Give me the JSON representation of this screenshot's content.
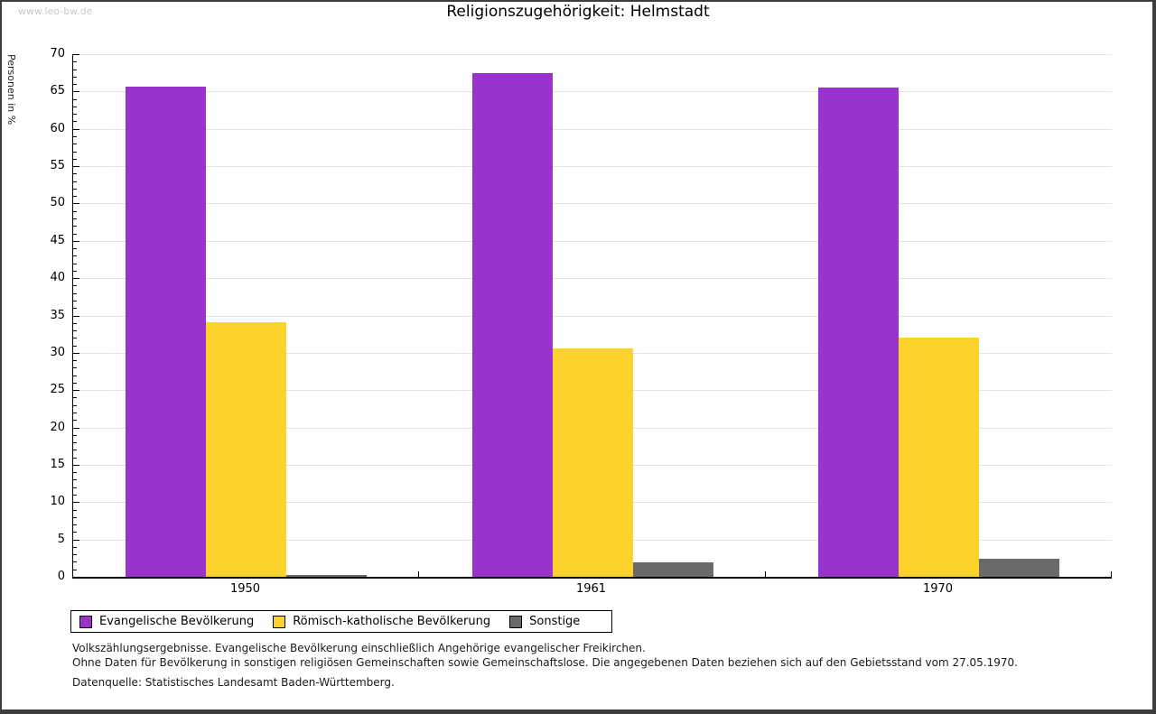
{
  "page": {
    "watermark": "www.leo-bw.de",
    "title": "Religionszugehörigkeit: Helmstadt"
  },
  "chart_data": {
    "type": "bar",
    "title": "Religionszugehörigkeit: Helmstadt",
    "ylabel": "Personen in %",
    "xlabel": "",
    "ylim": [
      0,
      70
    ],
    "ytick_step": 5,
    "yminor_step": 1,
    "grid": true,
    "legend_position": "bottom-left",
    "categories": [
      "1950",
      "1961",
      "1970"
    ],
    "series": [
      {
        "name": "Evangelische Bevölkerung",
        "color": "#9933cc",
        "values": [
          65.6,
          67.5,
          65.5
        ]
      },
      {
        "name": "Römisch-katholische Bevölkerung",
        "color": "#fdd32b",
        "values": [
          34.1,
          30.6,
          32.0
        ]
      },
      {
        "name": "Sonstige",
        "color": "#6a6a6a",
        "values": [
          0.3,
          1.9,
          2.4
        ]
      }
    ]
  },
  "footnotes": [
    "Volkszählungsergebnisse. Evangelische Bevölkerung einschließlich Angehörige evangelischer Freikirchen.",
    "Ohne Daten für Bevölkerung in sonstigen religiösen Gemeinschaften sowie Gemeinschaftslose. Die angegebenen Daten beziehen sich auf den Gebietsstand vom 27.05.1970."
  ],
  "source": "Datenquelle: Statistisches Landesamt Baden-Württemberg."
}
